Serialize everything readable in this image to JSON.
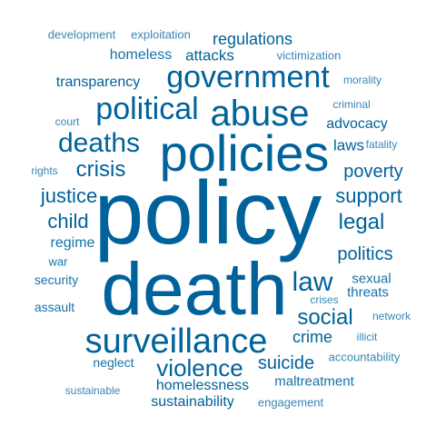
{
  "colors": {
    "dark": "#00629b",
    "mid": "#1473a8",
    "light": "#3a86b5"
  },
  "words": [
    {
      "id": "policy",
      "text": "policy",
      "tone": "dark"
    },
    {
      "id": "death",
      "text": "death",
      "tone": "dark"
    },
    {
      "id": "policies",
      "text": "policies",
      "tone": "dark"
    },
    {
      "id": "surveillance",
      "text": "surveillance",
      "tone": "dark"
    },
    {
      "id": "abuse",
      "text": "abuse",
      "tone": "dark"
    },
    {
      "id": "government",
      "text": "government",
      "tone": "dark"
    },
    {
      "id": "political",
      "text": "political",
      "tone": "dark"
    },
    {
      "id": "deaths",
      "text": "deaths",
      "tone": "dark"
    },
    {
      "id": "violence",
      "text": "violence",
      "tone": "dark"
    },
    {
      "id": "law",
      "text": "law",
      "tone": "dark"
    },
    {
      "id": "social",
      "text": "social",
      "tone": "dark"
    },
    {
      "id": "crisis",
      "text": "crisis",
      "tone": "dark"
    },
    {
      "id": "justice",
      "text": "justice",
      "tone": "dark"
    },
    {
      "id": "support",
      "text": "support",
      "tone": "dark"
    },
    {
      "id": "legal",
      "text": "legal",
      "tone": "dark"
    },
    {
      "id": "child",
      "text": "child",
      "tone": "dark"
    },
    {
      "id": "poverty",
      "text": "poverty",
      "tone": "dark"
    },
    {
      "id": "politics",
      "text": "politics",
      "tone": "dark"
    },
    {
      "id": "suicide",
      "text": "suicide",
      "tone": "dark"
    },
    {
      "id": "regulations",
      "text": "regulations",
      "tone": "dark"
    },
    {
      "id": "homelessness",
      "text": "homelessness",
      "tone": "dark"
    },
    {
      "id": "sustainability",
      "text": "sustainability",
      "tone": "dark"
    },
    {
      "id": "crime",
      "text": "crime",
      "tone": "dark"
    },
    {
      "id": "regime",
      "text": "regime",
      "tone": "mid"
    },
    {
      "id": "attacks",
      "text": "attacks",
      "tone": "dark"
    },
    {
      "id": "transparency",
      "text": "transparency",
      "tone": "dark"
    },
    {
      "id": "advocacy",
      "text": "advocacy",
      "tone": "dark"
    },
    {
      "id": "laws",
      "text": "laws",
      "tone": "dark"
    },
    {
      "id": "homeless",
      "text": "homeless",
      "tone": "mid"
    },
    {
      "id": "security",
      "text": "security",
      "tone": "mid"
    },
    {
      "id": "assault",
      "text": "assault",
      "tone": "mid"
    },
    {
      "id": "sexual",
      "text": "sexual",
      "tone": "mid"
    },
    {
      "id": "threats",
      "text": "threats",
      "tone": "mid"
    },
    {
      "id": "neglect",
      "text": "neglect",
      "tone": "mid"
    },
    {
      "id": "maltreatment",
      "text": "maltreatment",
      "tone": "mid"
    },
    {
      "id": "war",
      "text": "war",
      "tone": "mid"
    },
    {
      "id": "development",
      "text": "development",
      "tone": "light"
    },
    {
      "id": "exploitation",
      "text": "exploitation",
      "tone": "light"
    },
    {
      "id": "victimization",
      "text": "victimization",
      "tone": "light"
    },
    {
      "id": "morality",
      "text": "morality",
      "tone": "light"
    },
    {
      "id": "criminal",
      "text": "criminal",
      "tone": "light"
    },
    {
      "id": "court",
      "text": "court",
      "tone": "light"
    },
    {
      "id": "fatality",
      "text": "fatality",
      "tone": "light"
    },
    {
      "id": "rights",
      "text": "rights",
      "tone": "light"
    },
    {
      "id": "crises",
      "text": "crises",
      "tone": "light"
    },
    {
      "id": "network",
      "text": "network",
      "tone": "light"
    },
    {
      "id": "illicit",
      "text": "illicit",
      "tone": "light"
    },
    {
      "id": "accountability",
      "text": "accountability",
      "tone": "light"
    },
    {
      "id": "sustainable",
      "text": "sustainable",
      "tone": "light"
    },
    {
      "id": "engagement",
      "text": "engagement",
      "tone": "light"
    }
  ]
}
